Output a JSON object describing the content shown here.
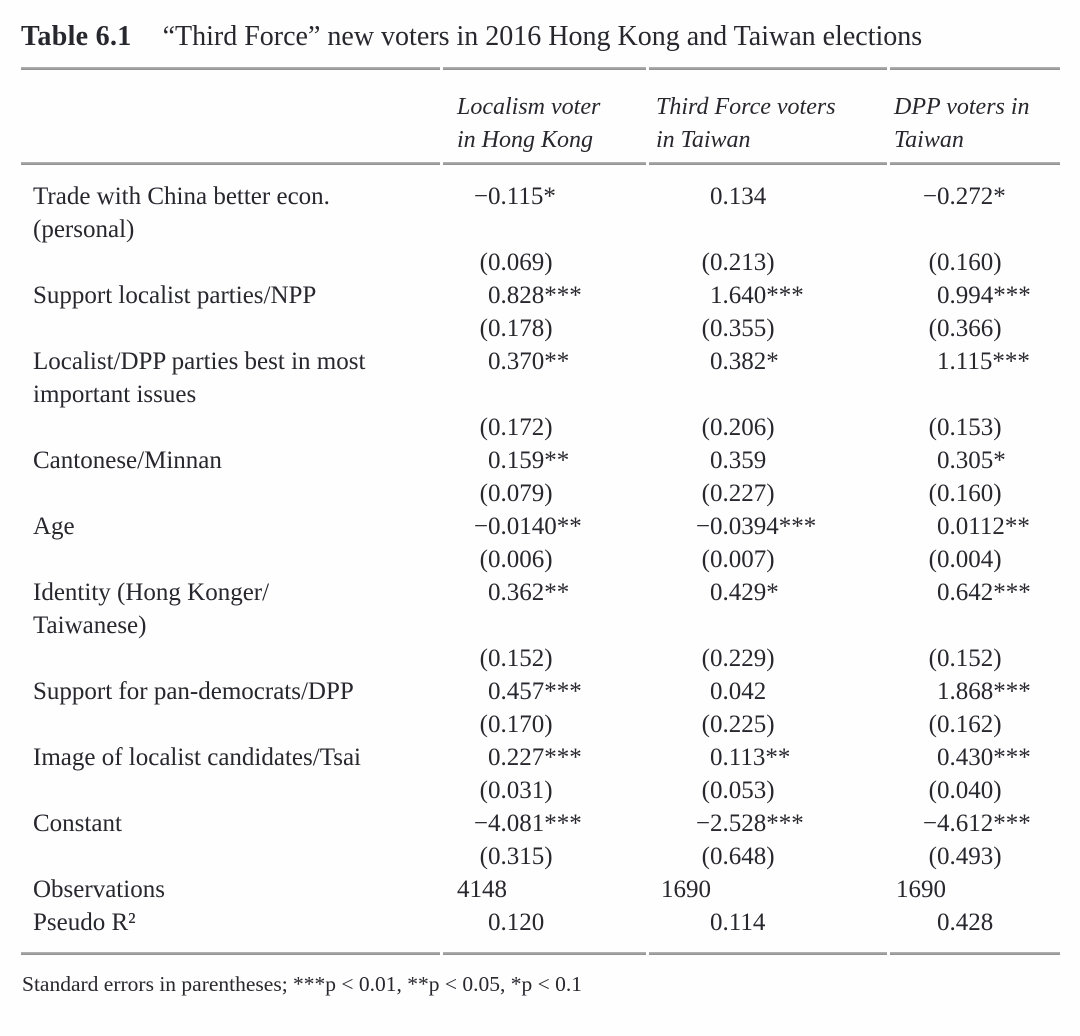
{
  "caption": {
    "label": "Table 6.1",
    "title": "“Third Force” new voters in 2016 Hong Kong and Taiwan elections"
  },
  "table": {
    "column_headers": [
      "",
      "Localism voter\nin Hong Kong",
      "Third Force voters\nin Taiwan",
      "DPP voters in\nTaiwan"
    ],
    "rows": [
      {
        "label": "Trade with China better econ.",
        "values": [
          "−0.115*",
          "0.134",
          "−0.272*"
        ]
      },
      {
        "label": "(personal)",
        "values": [
          "",
          "",
          ""
        ]
      },
      {
        "label": "",
        "values": [
          "(0.069)",
          "(0.213)",
          "(0.160)"
        ]
      },
      {
        "label": "Support localist parties/NPP",
        "values": [
          "0.828***",
          "1.640***",
          "0.994***"
        ]
      },
      {
        "label": "",
        "values": [
          "(0.178)",
          "(0.355)",
          "(0.366)"
        ]
      },
      {
        "label": "Localist/DPP parties best in most",
        "values": [
          "0.370**",
          "0.382*",
          "1.115***"
        ]
      },
      {
        "label": "important issues",
        "values": [
          "",
          "",
          ""
        ]
      },
      {
        "label": "",
        "values": [
          "(0.172)",
          "(0.206)",
          "(0.153)"
        ]
      },
      {
        "label": "Cantonese/Minnan",
        "values": [
          "0.159**",
          "0.359",
          "0.305*"
        ]
      },
      {
        "label": "",
        "values": [
          "(0.079)",
          "(0.227)",
          "(0.160)"
        ]
      },
      {
        "label": "Age",
        "values": [
          "−0.0140**",
          "−0.0394***",
          "0.0112**"
        ]
      },
      {
        "label": "",
        "values": [
          "(0.006)",
          "(0.007)",
          "(0.004)"
        ]
      },
      {
        "label": "Identity (Hong Konger/",
        "values": [
          "0.362**",
          "0.429*",
          "0.642***"
        ]
      },
      {
        "label": "Taiwanese)",
        "values": [
          "",
          "",
          ""
        ]
      },
      {
        "label": "",
        "values": [
          "(0.152)",
          "(0.229)",
          "(0.152)"
        ]
      },
      {
        "label": "Support for pan-democrats/DPP",
        "values": [
          "0.457***",
          "0.042",
          "1.868***"
        ]
      },
      {
        "label": "",
        "values": [
          "(0.170)",
          "(0.225)",
          "(0.162)"
        ]
      },
      {
        "label": "Image of localist candidates/Tsai",
        "values": [
          "0.227***",
          "0.113**",
          "0.430***"
        ]
      },
      {
        "label": "",
        "values": [
          "(0.031)",
          "(0.053)",
          "(0.040)"
        ]
      },
      {
        "label": "Constant",
        "values": [
          "−4.081***",
          "−2.528***",
          "−4.612***"
        ]
      },
      {
        "label": "",
        "values": [
          "(0.315)",
          "(0.648)",
          "(0.493)"
        ]
      },
      {
        "label": "Observations",
        "values": [
          "4148",
          "1690",
          "1690"
        ]
      },
      {
        "label": "Pseudo R²",
        "values": [
          "0.120",
          "0.114",
          "0.428"
        ]
      }
    ]
  },
  "footnote": "Standard errors in parentheses; ***p < 0.01, **p < 0.05, *p < 0.1"
}
